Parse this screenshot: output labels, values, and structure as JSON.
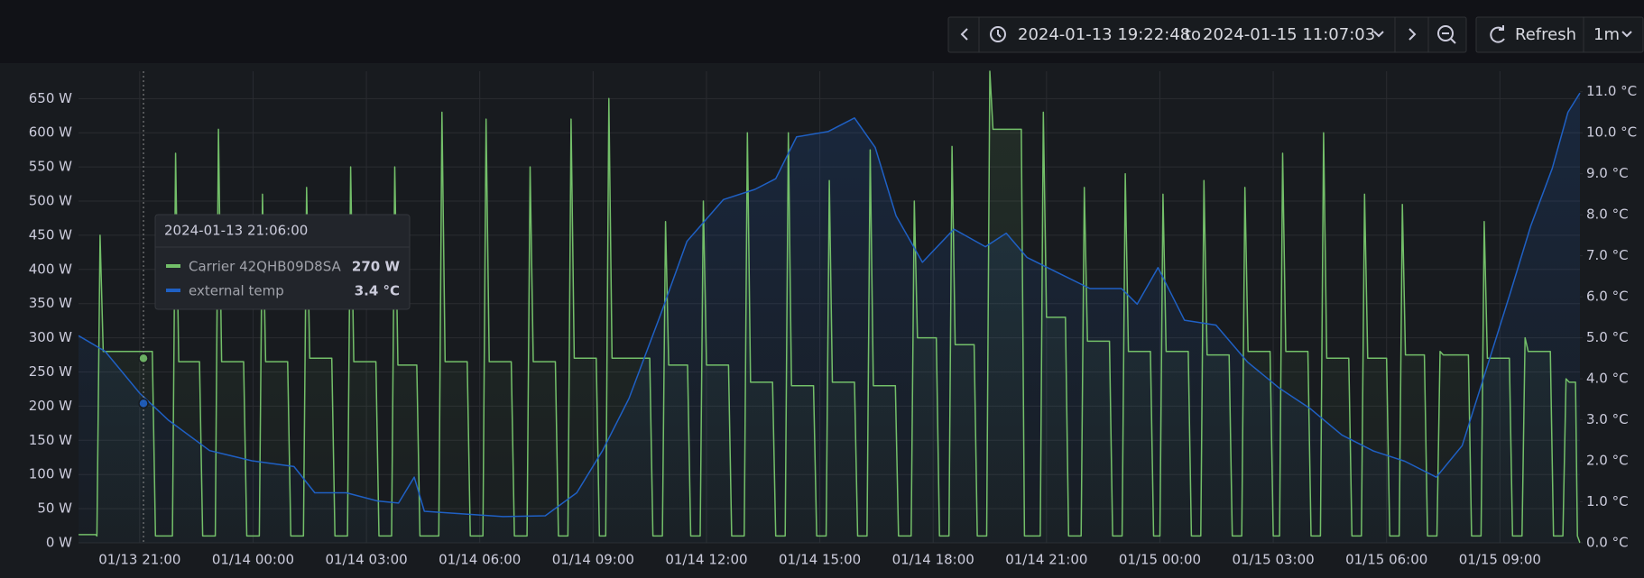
{
  "header": {
    "from": "2024-01-13 19:22:48",
    "to_word": "to",
    "to": "2024-01-15 11:07:03",
    "refresh": "Refresh",
    "interval": "1m"
  },
  "chart_data": {
    "type": "line",
    "xlim": [
      "01/13 19:22:48",
      "01/15 11:07:03"
    ],
    "xticks": [
      "01/13 21:00",
      "01/14 00:00",
      "01/14 03:00",
      "01/14 06:00",
      "01/14 09:00",
      "01/14 12:00",
      "01/14 15:00",
      "01/14 18:00",
      "01/14 21:00",
      "01/15 00:00",
      "01/15 03:00",
      "01/15 06:00",
      "01/15 09:00"
    ],
    "ylim": [
      0,
      690
    ],
    "yticks": [
      {
        "value": 0,
        "label": "0 W"
      },
      {
        "value": 50,
        "label": "50 W"
      },
      {
        "value": 100,
        "label": "100 W"
      },
      {
        "value": 150,
        "label": "150 W"
      },
      {
        "value": 200,
        "label": "200 W"
      },
      {
        "value": 250,
        "label": "250 W"
      },
      {
        "value": 300,
        "label": "300 W"
      },
      {
        "value": 350,
        "label": "350 W"
      },
      {
        "value": 400,
        "label": "400 W"
      },
      {
        "value": 450,
        "label": "450 W"
      },
      {
        "value": 500,
        "label": "500 W"
      },
      {
        "value": 550,
        "label": "550 W"
      },
      {
        "value": 600,
        "label": "600 W"
      },
      {
        "value": 650,
        "label": "650 W"
      }
    ],
    "y2lim": [
      0,
      11.5
    ],
    "y2ticks": [
      {
        "value": 0,
        "label": "0.0 °C"
      },
      {
        "value": 1,
        "label": "1.0 °C"
      },
      {
        "value": 2,
        "label": "2.0 °C"
      },
      {
        "value": 3,
        "label": "3.0 °C"
      },
      {
        "value": 4,
        "label": "4.0 °C"
      },
      {
        "value": 5,
        "label": "5.0 °C"
      },
      {
        "value": 6,
        "label": "6.0 °C"
      },
      {
        "value": 7,
        "label": "7.0 °C"
      },
      {
        "value": 8,
        "label": "8.0 °C"
      },
      {
        "value": 9,
        "label": "9.0 °C"
      },
      {
        "value": 10,
        "label": "10.0 °C"
      },
      {
        "value": 11,
        "label": "11.0 °C"
      }
    ],
    "grid": true,
    "series": [
      {
        "name": "Carrier 42QHB09D8SA",
        "color": "#73bf69",
        "axis": "y",
        "x": [
          "01/13 19:23",
          "01/13 19:50",
          "01/13 19:52",
          "01/13 19:57",
          "01/13 20:02",
          "01/13 21:20",
          "01/13 21:25",
          "01/13 21:52",
          "01/13 21:57",
          "01/13 22:02",
          "01/13 22:35",
          "01/13 22:40",
          "01/13 23:00",
          "01/13 23:05",
          "01/13 23:10",
          "01/13 23:45",
          "01/13 23:50",
          "01/14 00:10",
          "01/14 00:15",
          "01/14 00:20",
          "01/14 00:55",
          "01/14 01:00",
          "01/14 01:20",
          "01/14 01:25",
          "01/14 01:30",
          "01/14 02:05",
          "01/14 02:10",
          "01/14 02:30",
          "01/14 02:35",
          "01/14 02:40",
          "01/14 03:15",
          "01/14 03:20",
          "01/14 03:40",
          "01/14 03:45",
          "01/14 03:50",
          "01/14 04:20",
          "01/14 04:25",
          "01/14 04:55",
          "01/14 05:00",
          "01/14 05:05",
          "01/14 05:40",
          "01/14 05:45",
          "01/14 06:05",
          "01/14 06:10",
          "01/14 06:15",
          "01/14 06:50",
          "01/14 06:55",
          "01/14 07:15",
          "01/14 07:20",
          "01/14 07:25",
          "01/14 08:00",
          "01/14 08:05",
          "01/14 08:20",
          "01/14 08:25",
          "01/14 08:30",
          "01/14 09:05",
          "01/14 09:10",
          "01/14 09:20",
          "01/14 09:25",
          "01/14 09:30",
          "01/14 10:30",
          "01/14 10:35",
          "01/14 10:50",
          "01/14 10:55",
          "01/14 11:00",
          "01/14 11:30",
          "01/14 11:35",
          "01/14 11:50",
          "01/14 11:55",
          "01/14 12:00",
          "01/14 12:35",
          "01/14 12:40",
          "01/14 13:00",
          "01/14 13:05",
          "01/14 13:10",
          "01/14 13:45",
          "01/14 13:50",
          "01/14 14:05",
          "01/14 14:10",
          "01/14 14:15",
          "01/14 14:50",
          "01/14 14:55",
          "01/14 15:10",
          "01/14 15:15",
          "01/14 15:20",
          "01/14 15:55",
          "01/14 16:00",
          "01/14 16:15",
          "01/14 16:20",
          "01/14 16:25",
          "01/14 17:00",
          "01/14 17:05",
          "01/14 17:25",
          "01/14 17:30",
          "01/14 17:35",
          "01/14 18:05",
          "01/14 18:10",
          "01/14 18:25",
          "01/14 18:30",
          "01/14 18:35",
          "01/14 19:05",
          "01/14 19:10",
          "01/14 19:25",
          "01/14 19:30",
          "01/14 19:35",
          "01/14 20:20",
          "01/14 20:25",
          "01/14 20:50",
          "01/14 20:55",
          "01/14 21:00",
          "01/14 21:30",
          "01/14 21:35",
          "01/14 21:55",
          "01/14 22:00",
          "01/14 22:05",
          "01/14 22:40",
          "01/14 22:45",
          "01/14 23:00",
          "01/14 23:05",
          "01/14 23:10",
          "01/14 23:45",
          "01/14 23:50",
          "01/15 00:00",
          "01/15 00:05",
          "01/15 00:10",
          "01/15 00:45",
          "01/15 00:50",
          "01/15 01:05",
          "01/15 01:10",
          "01/15 01:15",
          "01/15 01:50",
          "01/15 01:55",
          "01/15 02:10",
          "01/15 02:15",
          "01/15 02:20",
          "01/15 02:55",
          "01/15 03:00",
          "01/15 03:10",
          "01/15 03:15",
          "01/15 03:20",
          "01/15 03:55",
          "01/15 04:00",
          "01/15 04:15",
          "01/15 04:20",
          "01/15 04:25",
          "01/15 05:00",
          "01/15 05:05",
          "01/15 05:20",
          "01/15 05:25",
          "01/15 05:30",
          "01/15 06:00",
          "01/15 06:05",
          "01/15 06:20",
          "01/15 06:25",
          "01/15 06:30",
          "01/15 07:00",
          "01/15 07:05",
          "01/15 07:20",
          "01/15 07:25",
          "01/15 07:30",
          "01/15 08:10",
          "01/15 08:15",
          "01/15 08:30",
          "01/15 08:35",
          "01/15 08:40",
          "01/15 09:15",
          "01/15 09:20",
          "01/15 09:35",
          "01/15 09:40",
          "01/15 09:45",
          "01/15 10:20",
          "01/15 10:25",
          "01/15 10:40",
          "01/15 10:45",
          "01/15 10:50",
          "01/15 11:00",
          "01/15 11:03",
          "01/15 11:07"
        ],
        "values": [
          12,
          12,
          10,
          450,
          280,
          280,
          10,
          10,
          570,
          265,
          265,
          10,
          10,
          605,
          265,
          265,
          10,
          10,
          510,
          265,
          265,
          10,
          10,
          520,
          270,
          270,
          10,
          10,
          550,
          265,
          265,
          10,
          10,
          550,
          260,
          260,
          10,
          10,
          630,
          265,
          265,
          10,
          10,
          620,
          265,
          265,
          10,
          10,
          550,
          265,
          265,
          10,
          10,
          620,
          270,
          270,
          10,
          10,
          650,
          270,
          270,
          10,
          10,
          470,
          260,
          260,
          10,
          10,
          500,
          260,
          260,
          10,
          10,
          600,
          235,
          235,
          10,
          10,
          600,
          230,
          230,
          10,
          10,
          530,
          235,
          235,
          10,
          10,
          575,
          230,
          230,
          10,
          10,
          500,
          300,
          300,
          10,
          10,
          580,
          290,
          290,
          10,
          10,
          690,
          605,
          605,
          10,
          10,
          630,
          330,
          330,
          10,
          10,
          520,
          295,
          295,
          10,
          10,
          540,
          280,
          280,
          10,
          10,
          510,
          280,
          280,
          10,
          10,
          530,
          275,
          275,
          10,
          10,
          520,
          280,
          280,
          10,
          10,
          570,
          280,
          280,
          10,
          10,
          600,
          270,
          270,
          10,
          10,
          510,
          270,
          270,
          10,
          10,
          495,
          275,
          275,
          10,
          10,
          280,
          275,
          275,
          10,
          10,
          470,
          270,
          270,
          10,
          10,
          300,
          280,
          280,
          10,
          10,
          240,
          235,
          235,
          10,
          0
        ]
      },
      {
        "name": "external temp",
        "color": "#1f60c4",
        "axis": "y2",
        "x": [
          "01/13 19:23",
          "01/13 20:05",
          "01/13 21:00",
          "01/13 21:45",
          "01/13 22:51",
          "01/13 23:58",
          "01/14 01:05",
          "01/14 01:38",
          "01/14 02:28",
          "01/14 03:18",
          "01/14 03:51",
          "01/14 04:16",
          "01/14 04:32",
          "01/14 05:30",
          "01/14 06:37",
          "01/14 07:44",
          "01/14 08:34",
          "01/14 09:15",
          "01/14 09:57",
          "01/14 10:47",
          "01/14 11:29",
          "01/14 12:27",
          "01/14 13:17",
          "01/14 13:50",
          "01/14 14:23",
          "01/14 15:13",
          "01/14 15:55",
          "01/14 16:28",
          "01/14 17:01",
          "01/14 17:43",
          "01/14 18:33",
          "01/14 19:23",
          "01/14 19:56",
          "01/14 20:29",
          "01/14 21:19",
          "01/14 22:09",
          "01/14 22:59",
          "01/14 23:24",
          "01/14 23:57",
          "01/15 00:39",
          "01/15 01:29",
          "01/15 02:19",
          "01/15 03:09",
          "01/15 03:59",
          "01/15 04:49",
          "01/15 05:39",
          "01/15 06:29",
          "01/15 07:19",
          "01/15 08:00",
          "01/15 08:42",
          "01/15 09:16",
          "01/15 09:49",
          "01/15 10:23",
          "01/15 10:48",
          "01/15 11:07"
        ],
        "values": [
          5.05,
          4.67,
          3.65,
          3.0,
          2.25,
          2.0,
          1.86,
          1.22,
          1.22,
          1.02,
          0.97,
          1.6,
          0.77,
          0.71,
          0.64,
          0.66,
          1.22,
          2.25,
          3.52,
          5.56,
          7.35,
          8.37,
          8.62,
          8.88,
          9.9,
          10.03,
          10.36,
          9.64,
          7.98,
          6.84,
          7.65,
          7.22,
          7.55,
          6.96,
          6.58,
          6.2,
          6.2,
          5.82,
          6.71,
          5.43,
          5.31,
          4.41,
          3.78,
          3.27,
          2.63,
          2.24,
          1.99,
          1.6,
          2.37,
          4.41,
          6.07,
          7.73,
          9.13,
          10.5,
          10.97
        ]
      }
    ],
    "tooltip": {
      "x": "01/13 21:06",
      "time_label": "2024-01-13 21:06:00",
      "values": [
        270,
        3.4
      ],
      "value_labels": [
        "270 W",
        "3.4 °C"
      ]
    }
  }
}
